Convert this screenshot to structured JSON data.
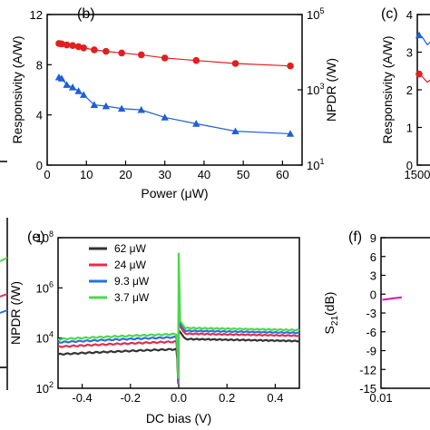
{
  "colors": {
    "blue": "#1f5fd6",
    "red": "#e02020",
    "dark": "#333333",
    "crimson": "#e0304a",
    "bright_blue": "#2a6fe0",
    "green": "#4cd84a",
    "magenta": "#e010b0",
    "axis": "#000000"
  },
  "panel_labels": {
    "b": "(b)",
    "c": "(c)",
    "e": "(e)",
    "f": "(f)"
  },
  "chart_data": [
    {
      "id": "b",
      "type": "line",
      "xlabel": "Power (μW)",
      "ylabel": "Responsivity (A/W)",
      "y2label": "NPDR (/W)",
      "xlim": [
        0,
        65
      ],
      "ylim": [
        0,
        12
      ],
      "y2lim": [
        10,
        100000
      ],
      "y2scale": "log",
      "xticks": [
        0,
        10,
        20,
        30,
        40,
        50,
        60
      ],
      "yticks": [
        0,
        4,
        8,
        12
      ],
      "y2ticks": [
        {
          "value": 10,
          "base": "10",
          "exp": "1"
        },
        {
          "value": 1000,
          "base": "10",
          "exp": "3"
        },
        {
          "value": 100000,
          "base": "10",
          "exp": "5"
        }
      ],
      "series": [
        {
          "axis": "left",
          "marker": "triangle",
          "color": "blue",
          "x": [
            3,
            3.7,
            5,
            6.5,
            8,
            9.3,
            12,
            15,
            19,
            24,
            30,
            38,
            48,
            62
          ],
          "y": [
            7.0,
            6.9,
            6.4,
            6.2,
            5.9,
            5.6,
            4.8,
            4.7,
            4.5,
            4.4,
            3.8,
            3.3,
            2.7,
            2.5
          ]
        },
        {
          "axis": "right",
          "marker": "circle",
          "color": "red",
          "x": [
            3,
            3.7,
            5,
            6.5,
            8,
            9.3,
            12,
            15,
            19,
            24,
            30,
            38,
            48,
            62
          ],
          "y": [
            17000,
            16500,
            15500,
            15000,
            14000,
            13000,
            11500,
            10500,
            9500,
            8500,
            7000,
            6000,
            5000,
            4300
          ]
        }
      ]
    },
    {
      "id": "c",
      "type": "line",
      "xlabel": "",
      "ylabel": "Responsivity (A/W)",
      "xlim": [
        1500,
        1600
      ],
      "ylim": [
        0,
        4
      ],
      "xticks": [
        1500
      ],
      "yticks": [
        0,
        1,
        2,
        3,
        4
      ],
      "series": [
        {
          "marker": "triangle",
          "color": "blue",
          "x": [
            1500,
            1505,
            1510,
            1515
          ],
          "y": [
            3.45,
            3.4,
            3.2,
            3.3
          ]
        },
        {
          "marker": "circle",
          "color": "red",
          "x": [
            1500,
            1505,
            1510,
            1515
          ],
          "y": [
            2.42,
            2.35,
            2.2,
            2.3
          ]
        }
      ]
    },
    {
      "id": "e",
      "type": "line",
      "xlabel": "DC bias (V)",
      "ylabel": "NPDR (/W)",
      "xlim": [
        -0.5,
        0.5
      ],
      "ylim": [
        100,
        100000000
      ],
      "yscale": "log",
      "xticks": [
        -0.4,
        -0.2,
        0.0,
        0.2,
        0.4
      ],
      "xtick_labels": [
        "-0.4",
        "-0.2",
        "0.0",
        "0.2",
        "0.4"
      ],
      "yticks": [
        {
          "value": 100,
          "base": "10",
          "exp": "2"
        },
        {
          "value": 10000,
          "base": "10",
          "exp": "4"
        },
        {
          "value": 1000000,
          "base": "10",
          "exp": "6"
        },
        {
          "value": 100000000,
          "base": "10",
          "exp": "8"
        }
      ],
      "legend": "top-left",
      "series": [
        {
          "name": "62 μW",
          "color": "dark",
          "left_level": 3000,
          "right_level": 8000,
          "peak": 20000
        },
        {
          "name": "24 μW",
          "color": "crimson",
          "left_level": 6000,
          "right_level": 13000,
          "peak": 60000
        },
        {
          "name": "9.3 μW",
          "color": "bright_blue",
          "left_level": 9000,
          "right_level": 17000,
          "peak": 150000
        },
        {
          "name": "3.7 μW",
          "color": "green",
          "left_level": 12000,
          "right_level": 22000,
          "peak": 25000000
        }
      ]
    },
    {
      "id": "f",
      "type": "line",
      "xlabel": "",
      "ylabel": "S21(dB)",
      "xlim": [
        0.01,
        1
      ],
      "ylim": [
        -15,
        9
      ],
      "xscale": "log",
      "xticks": [
        0.01
      ],
      "xtick_labels": [
        "0.01"
      ],
      "yticks": [
        9,
        6,
        3,
        0,
        -3,
        -6,
        -9,
        -12,
        -15
      ],
      "series": [
        {
          "color": "magenta",
          "x": [
            0.011,
            0.02,
            0.04
          ],
          "y": [
            -0.9,
            -0.7,
            -0.5
          ]
        }
      ]
    }
  ],
  "left_cut_ticks": [
    "9",
    "6",
    "3",
    "0"
  ]
}
